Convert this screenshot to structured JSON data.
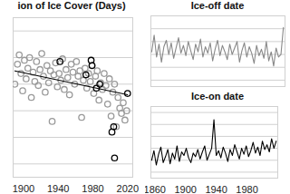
{
  "chart_data": [
    {
      "type": "scatter",
      "title": "ion of Ice Cover (Days)",
      "series": [
        {
          "color": "#999999",
          "marker": "circle",
          "x": [
            1890,
            1893,
            1895,
            1897,
            1899,
            1901,
            1903,
            1905,
            1907,
            1909,
            1911,
            1913,
            1915,
            1917,
            1919,
            1921,
            1923,
            1925,
            1927,
            1929,
            1931,
            1933,
            1935,
            1937,
            1939,
            1941,
            1943,
            1945,
            1947,
            1949,
            1951,
            1953,
            1955,
            1957,
            1959,
            1961,
            1963,
            1965,
            1967,
            1969,
            1971,
            1973,
            1975,
            1977,
            1979,
            1981,
            1983,
            1985,
            1987,
            1989,
            1991,
            1993,
            1995,
            1997,
            1999,
            2001,
            2003,
            2005,
            2007,
            2009,
            2011,
            2013,
            2015,
            2017,
            2019
          ],
          "values": [
            110,
            125,
            132,
            118,
            105,
            128,
            114,
            122,
            130,
            100,
            119,
            112,
            127,
            109,
            121,
            133,
            116,
            104,
            124,
            111,
            120,
            82,
            117,
            126,
            108,
            118,
            113,
            129,
            106,
            121,
            115,
            102,
            125,
            119,
            110,
            127,
            116,
            120,
            85,
            113,
            122,
            107,
            118,
            112,
            124,
            103,
            116,
            120,
            98,
            111,
            106,
            118,
            109,
            95,
            114,
            86,
            104,
            110,
            78,
            100,
            92,
            88,
            96,
            83,
            90
          ]
        },
        {
          "color": "#000000",
          "marker": "circle",
          "x": [
            1942,
            1978,
            1979,
            1972,
            1984,
            1988,
            2002,
            2004,
            2005,
            2020
          ],
          "values": [
            127,
            128,
            124,
            117,
            107,
            110,
            74,
            78,
            54.5,
            103
          ]
        },
        {
          "type": "line",
          "color": "#000000",
          "line_style": "solid",
          "x": [
            1890,
            2020
          ],
          "values": [
            120,
            102
          ]
        }
      ],
      "xlim": [
        1888,
        2026
      ],
      "xticks": [
        1900,
        1940,
        1980,
        2020
      ],
      "ylim": [
        40,
        160
      ],
      "yticks": [
        50,
        70,
        90,
        110,
        130,
        150
      ],
      "grid": true,
      "tick_labels": "x"
    },
    {
      "type": "line",
      "title": "Ice-off date",
      "x": [
        1856,
        1859,
        1862,
        1865,
        1868,
        1871,
        1874,
        1877,
        1880,
        1883,
        1886,
        1889,
        1892,
        1895,
        1898,
        1901,
        1904,
        1907,
        1910,
        1913,
        1916,
        1919,
        1922,
        1925,
        1928,
        1931,
        1934,
        1937,
        1940,
        1943,
        1946,
        1949,
        1952,
        1955,
        1958,
        1961,
        1964,
        1967,
        1970,
        1973,
        1976,
        1979,
        1982,
        1985,
        1988,
        1991,
        1994,
        1997,
        2000,
        2003,
        2006,
        2009,
        2012,
        2015,
        2018
      ],
      "series": [
        {
          "color": "#888888",
          "values": [
            112,
            125,
            108,
            118,
            104,
            116,
            121,
            110,
            119,
            107,
            115,
            123,
            111,
            117,
            109,
            120,
            113,
            106,
            118,
            112,
            122,
            108,
            116,
            111,
            119,
            105,
            114,
            121,
            109,
            117,
            112,
            106,
            118,
            110,
            115,
            120,
            104,
            113,
            119,
            108,
            116,
            111,
            103,
            117,
            109,
            114,
            107,
            120,
            105,
            112,
            101,
            115,
            108,
            110,
            131
          ]
        }
      ],
      "xlim": [
        1855,
        2020
      ],
      "ylim": [
        85,
        140
      ],
      "yticks": [
        90,
        100,
        110,
        120,
        130
      ],
      "grid": true,
      "tick_labels": false
    },
    {
      "type": "line",
      "title": "Ice-on date",
      "x": [
        1856,
        1859,
        1862,
        1865,
        1868,
        1871,
        1874,
        1877,
        1880,
        1883,
        1886,
        1889,
        1892,
        1895,
        1898,
        1901,
        1904,
        1907,
        1910,
        1913,
        1916,
        1919,
        1922,
        1925,
        1928,
        1931,
        1934,
        1937,
        1940,
        1943,
        1946,
        1949,
        1952,
        1955,
        1958,
        1961,
        1964,
        1967,
        1970,
        1973,
        1976,
        1979,
        1982,
        1985,
        1988,
        1991,
        1994,
        1997,
        2000,
        2003,
        2006,
        2009,
        2012,
        2015,
        2018
      ],
      "series": [
        {
          "color": "#000000",
          "values": [
            340,
            348,
            336,
            345,
            351,
            338,
            343,
            349,
            337,
            346,
            341,
            352,
            339,
            347,
            344,
            350,
            342,
            338,
            346,
            343,
            349,
            341,
            347,
            352,
            340,
            345,
            350,
            374,
            344,
            348,
            342,
            351,
            346,
            339,
            349,
            344,
            353,
            347,
            341,
            350,
            345,
            352,
            343,
            348,
            355,
            346,
            351,
            344,
            356,
            349,
            353,
            347,
            358,
            350,
            356
          ]
        }
      ],
      "xlim": [
        1855,
        2020
      ],
      "xticks": [
        1860,
        1900,
        1940,
        1980
      ],
      "ylim": [
        325,
        385
      ],
      "yticks": [
        330,
        340,
        350,
        360,
        370,
        380
      ],
      "grid": true,
      "tick_labels": "x"
    }
  ]
}
